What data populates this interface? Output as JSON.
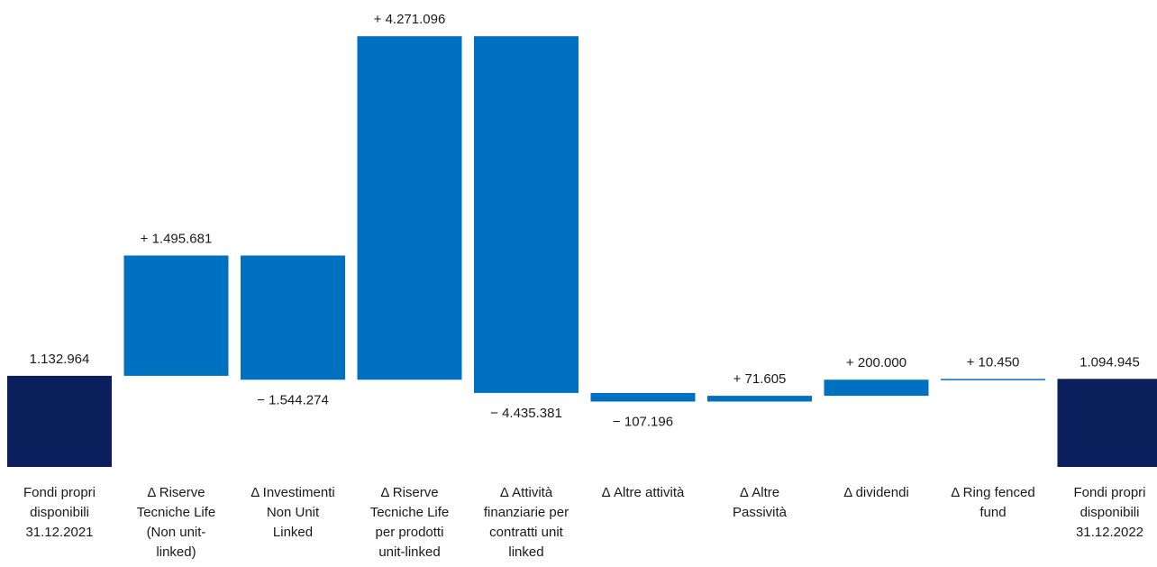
{
  "chart_data": {
    "type": "waterfall",
    "title": "",
    "xlabel": "",
    "ylabel": "",
    "colors": {
      "total": "#0a1f5c",
      "delta": "#0070c0"
    },
    "categories": [
      "Fondi propri\ndisponibili\n31.12.2021",
      "Δ Riserve\nTecniche Life\n(Non unit-\nlinked)",
      "Δ Investimenti\nNon Unit\nLinked",
      "Δ Riserve\nTecniche Life\nper prodotti\nunit-linked",
      "Δ Attività\nfinanziarie per\ncontratti unit\nlinked",
      "Δ Altre attività",
      "Δ Altre\nPassività",
      "Δ dividendi",
      "Δ Ring fenced\nfund",
      "Fondi propri\ndisponibili\n31.12.2022"
    ],
    "steps": [
      {
        "kind": "total",
        "value": 1132964,
        "label": "1.132.964"
      },
      {
        "kind": "delta",
        "value": 1495681,
        "label": "+ 1.495.681"
      },
      {
        "kind": "delta",
        "value": -1544274,
        "label": "− 1.544.274"
      },
      {
        "kind": "delta",
        "value": 4271096,
        "label": "+ 4.271.096"
      },
      {
        "kind": "delta",
        "value": -4435381,
        "label": "− 4.435.381"
      },
      {
        "kind": "delta",
        "value": -107196,
        "label": "− 107.196"
      },
      {
        "kind": "delta",
        "value": 71605,
        "label": "+ 71.605"
      },
      {
        "kind": "delta",
        "value": 200000,
        "label": "+ 200.000"
      },
      {
        "kind": "delta",
        "value": 10450,
        "label": "+ 10.450"
      },
      {
        "kind": "total",
        "value": 1094945,
        "label": "1.094.945"
      }
    ]
  }
}
